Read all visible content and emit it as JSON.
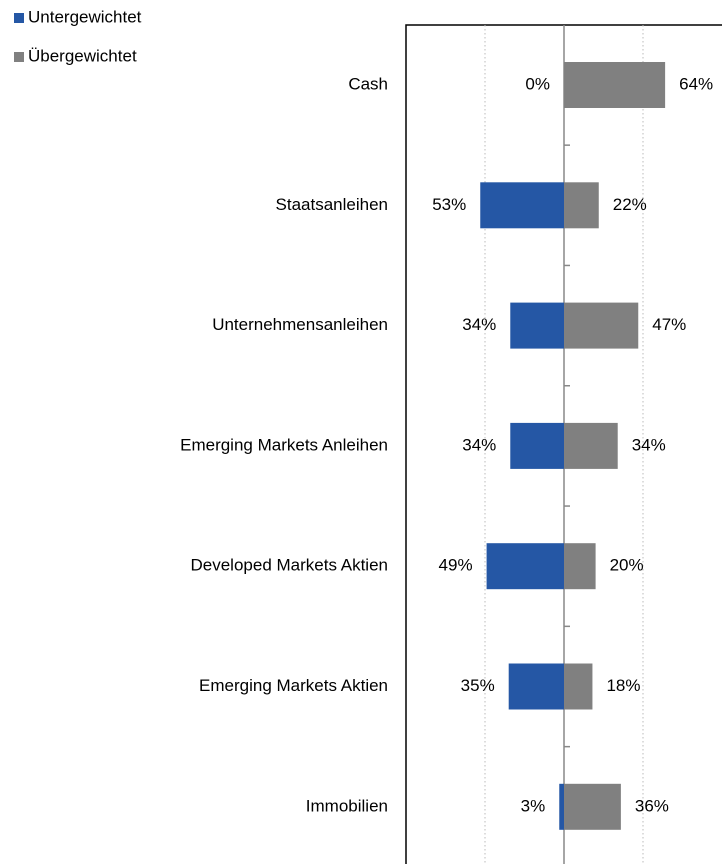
{
  "chart_data": {
    "type": "diverging-bar",
    "categories": [
      "Cash",
      "Staatsanleihen",
      "Unternehmensanleihen",
      "Emerging Markets Anleihen",
      "Developed Markets Aktien",
      "Emerging Markets Aktien",
      "Immobilien"
    ],
    "series": [
      {
        "name": "Untergewichtet",
        "color": "#2557a5",
        "values": [
          0,
          53,
          34,
          34,
          49,
          35,
          3
        ],
        "value_labels": [
          "0%",
          "53%",
          "34%",
          "34%",
          "49%",
          "35%",
          "3%"
        ]
      },
      {
        "name": "Übergewichtet",
        "color": "#808080",
        "values": [
          64,
          22,
          47,
          34,
          20,
          18,
          36
        ],
        "value_labels": [
          "64%",
          "22%",
          "47%",
          "34%",
          "20%",
          "18%",
          "36%"
        ]
      }
    ],
    "xlim": [
      -100,
      100
    ],
    "xticks": [
      -50,
      0,
      50
    ],
    "grid": true
  }
}
